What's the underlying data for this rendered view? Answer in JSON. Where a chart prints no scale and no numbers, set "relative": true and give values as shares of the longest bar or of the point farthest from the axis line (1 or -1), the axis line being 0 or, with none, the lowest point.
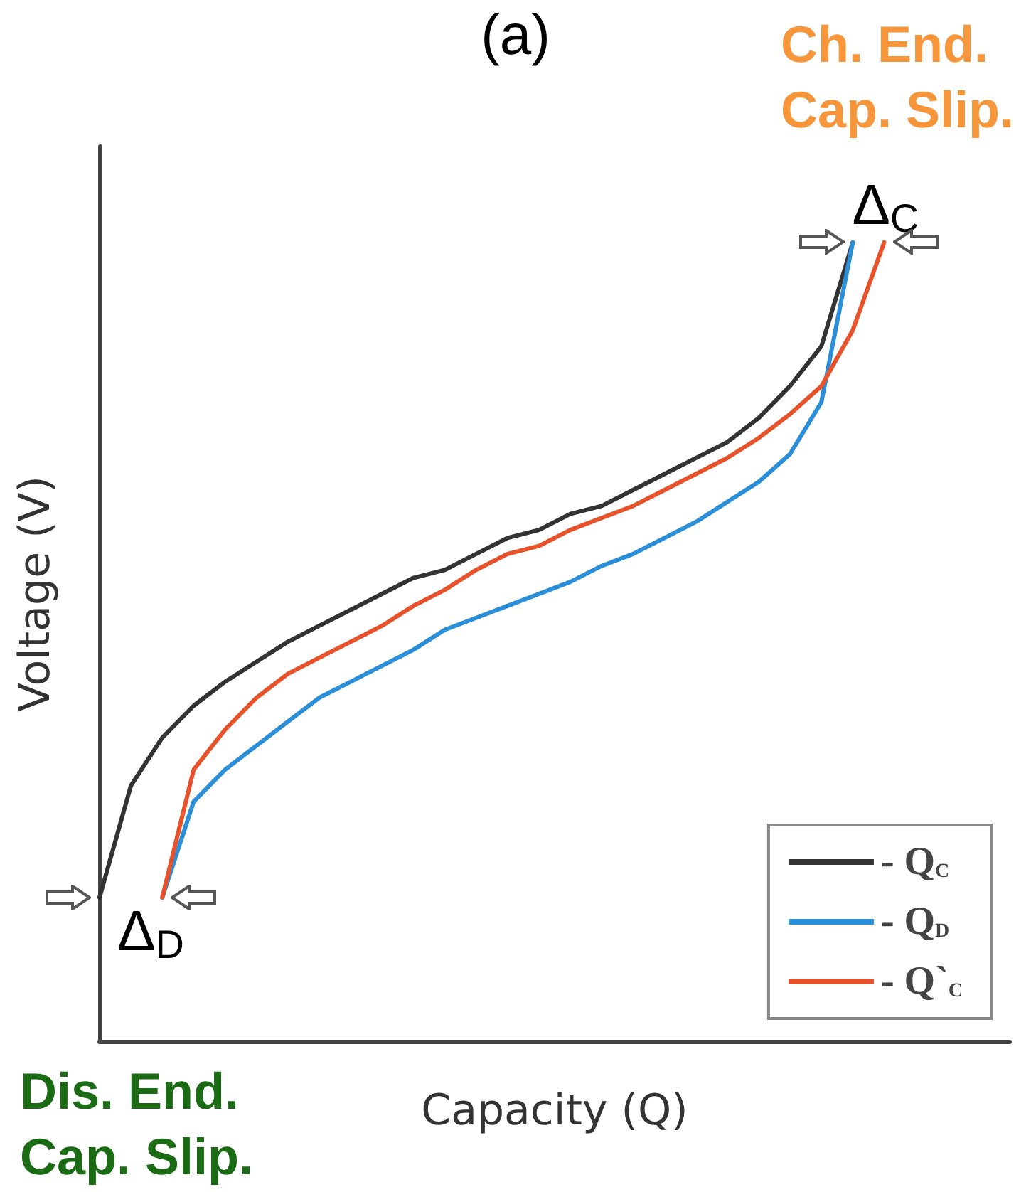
{
  "chart_data": {
    "type": "line",
    "title": "(a)",
    "xlabel": "Capacity (Q)",
    "ylabel": "Voltage (V)",
    "relative": true,
    "legend": "bottom right",
    "grid": false,
    "marker": "none",
    "line_style": "solid",
    "categories": [
      null,
      null,
      null,
      null,
      null,
      null,
      null,
      null,
      null,
      null,
      null,
      null,
      null,
      null,
      null,
      null,
      null,
      null,
      null,
      null,
      null,
      null,
      null,
      null,
      null,
      null,
      null,
      null,
      null,
      null
    ],
    "series": [
      {
        "name": "- Q$_{C}$",
        "color": "#333333",
        "values": [
          0.18,
          0.32,
          0.38,
          0.42,
          0.45,
          0.475,
          0.5,
          0.52,
          0.54,
          0.56,
          0.58,
          0.59,
          0.61,
          0.63,
          0.64,
          0.66,
          0.67,
          0.69,
          0.71,
          0.73,
          0.75,
          0.78,
          0.82,
          0.87,
          1.0,
          null,
          null,
          null,
          null,
          null
        ]
      },
      {
        "name": "- Q$_{D}$",
        "color": "#2a8fd8",
        "values": [
          null,
          null,
          0.18,
          0.3,
          0.34,
          0.37,
          0.4,
          0.43,
          0.45,
          0.47,
          0.49,
          0.515,
          0.53,
          0.545,
          0.56,
          0.575,
          0.595,
          0.61,
          0.63,
          0.65,
          0.675,
          0.7,
          0.735,
          0.8,
          1.0,
          null,
          null,
          null,
          null,
          null
        ]
      },
      {
        "name": "- Q`$_{C}$",
        "color": "#e8522a",
        "values": [
          null,
          null,
          0.18,
          0.34,
          0.39,
          0.43,
          0.46,
          0.48,
          0.5,
          0.52,
          0.545,
          0.565,
          0.59,
          0.61,
          0.62,
          0.64,
          0.655,
          0.67,
          0.69,
          0.71,
          0.73,
          0.755,
          0.785,
          0.82,
          0.89,
          1.0,
          null,
          null,
          null,
          null
        ]
      }
    ],
    "annotations": [
      "Ch. End.\nCap. Slip.",
      "Δ$_{C}$",
      "Δ$_{D}$",
      "Dis. End.\nCap. Slip."
    ]
  }
}
